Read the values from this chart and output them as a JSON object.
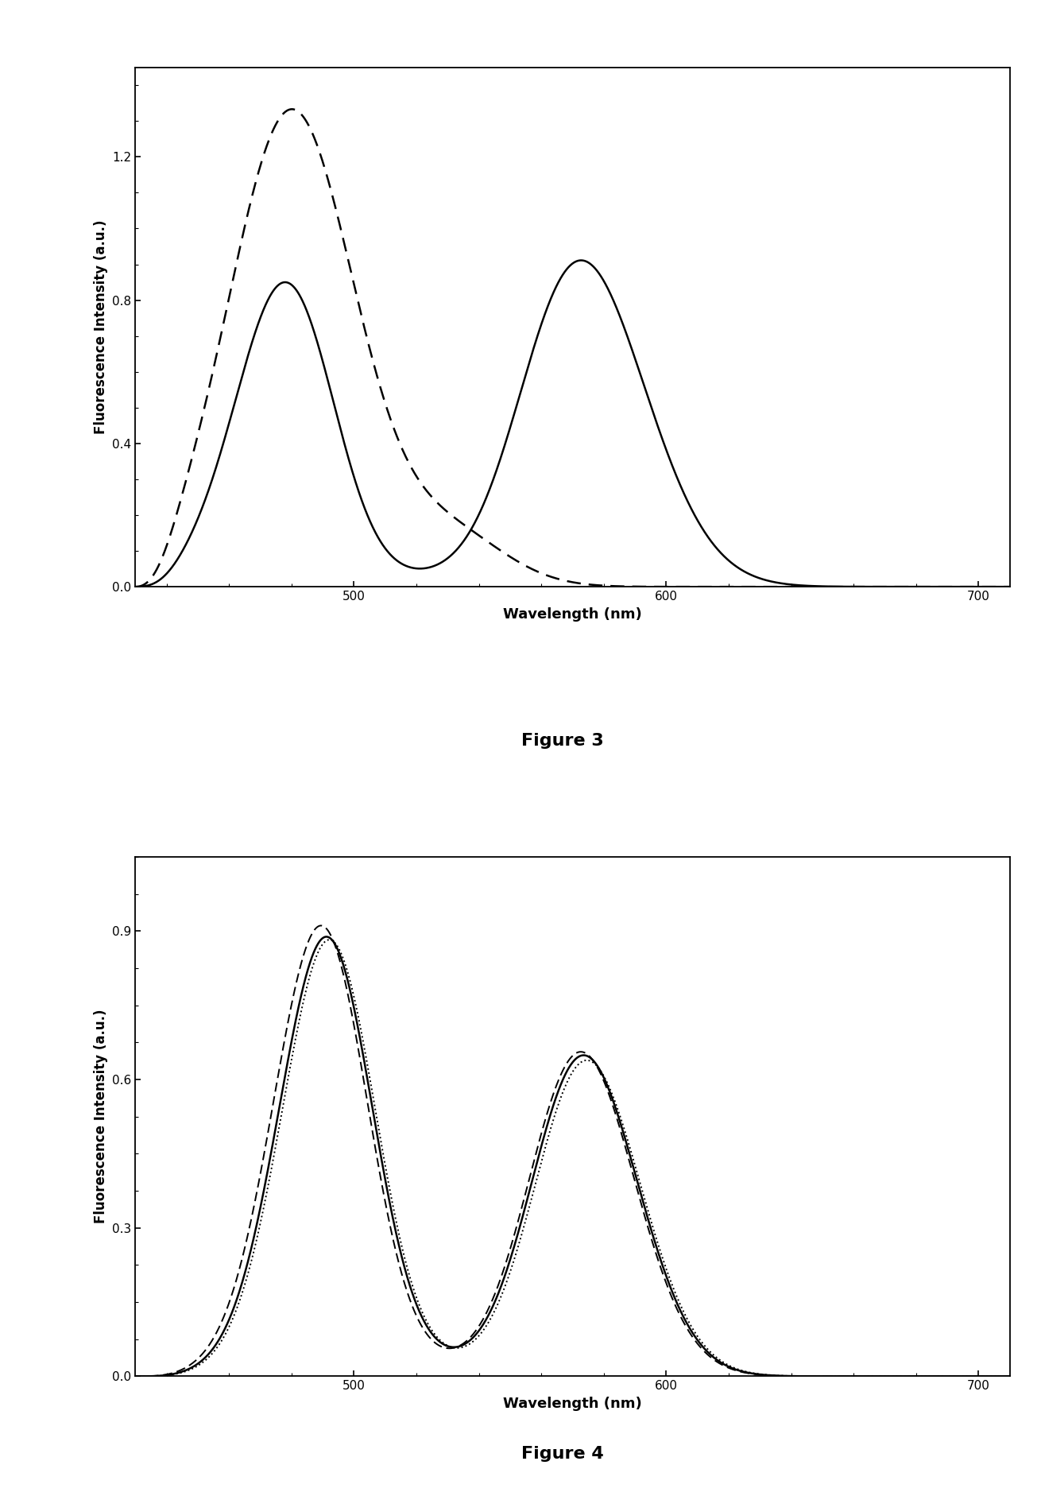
{
  "fig3": {
    "title": "Figure 3",
    "xlabel": "Wavelength (nm)",
    "ylabel": "Fluorescence Intensity (a.u.)",
    "xlim": [
      430,
      710
    ],
    "ylim": [
      0.0,
      1.45
    ],
    "yticks": [
      0.0,
      0.4,
      0.8,
      1.2
    ],
    "xticks": [
      500,
      600,
      700
    ]
  },
  "fig4": {
    "title": "Figure 4",
    "xlabel": "Wavelength (nm)",
    "ylabel": "Fluorescence Intensity (a.u.)",
    "xlim": [
      430,
      710
    ],
    "ylim": [
      0.0,
      1.05
    ],
    "yticks": [
      0.0,
      0.3,
      0.6,
      0.9
    ],
    "xticks": [
      500,
      600,
      700
    ]
  },
  "background_color": "#ffffff",
  "line_color": "#000000"
}
